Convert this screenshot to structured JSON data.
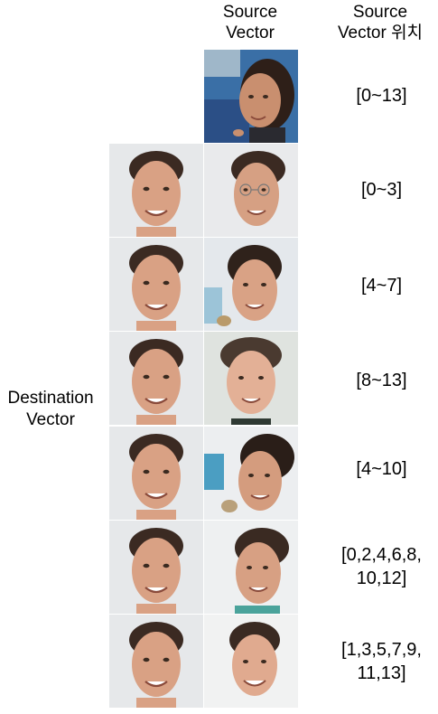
{
  "headers": {
    "source_vector": "Source\nVector",
    "source_vector_position": "Source\nVector 위치"
  },
  "destination_label": "Destination\nVector",
  "rows": [
    {
      "position": "[0~13]"
    },
    {
      "position": "[0~3]"
    },
    {
      "position": "[4~7]"
    },
    {
      "position": "[8~13]"
    },
    {
      "position": "[4~10]"
    },
    {
      "position": "[0,2,4,6,8,\n10,12]"
    },
    {
      "position": "[1,3,5,7,9,\n11,13]"
    }
  ],
  "colors": {
    "skin": "#d9a184",
    "hair": "#3b2a22",
    "bg_light": "#e8eaec",
    "bg_blue": "#3a6fa6"
  }
}
